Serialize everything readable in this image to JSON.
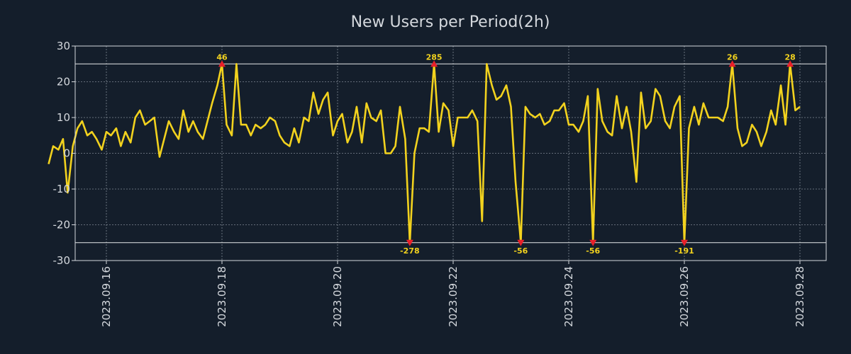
{
  "chart_data": {
    "type": "line",
    "title": "New Users per Period(2h)",
    "xlabel": "",
    "ylabel": "",
    "ylim": [
      -30,
      30
    ],
    "yticks": [
      30,
      20,
      10,
      0,
      -10,
      -20,
      -30
    ],
    "ytick_labels": [
      "30",
      "20",
      "10",
      "0",
      "-10",
      "-20",
      "-30"
    ],
    "x_start": "2023.09.15",
    "x_end": "2023.09.28",
    "x_ticks": [
      "2023.09.16",
      "2023.09.18",
      "2023.09.20",
      "2023.09.22",
      "2023.09.24",
      "2023.09.26",
      "2023.09.28"
    ],
    "clip_limits": [
      25,
      -25
    ],
    "series": [
      {
        "name": "New Users",
        "color": "#f2d21e",
        "values": [
          {
            "t": 0.0,
            "v": -3
          },
          {
            "t": 0.08,
            "v": 2
          },
          {
            "t": 0.17,
            "v": 1
          },
          {
            "t": 0.25,
            "v": 4
          },
          {
            "t": 0.33,
            "v": -11
          },
          {
            "t": 0.42,
            "v": 2
          },
          {
            "t": 0.5,
            "v": 7
          },
          {
            "t": 0.58,
            "v": 9
          },
          {
            "t": 0.67,
            "v": 5
          },
          {
            "t": 0.75,
            "v": 6
          },
          {
            "t": 0.83,
            "v": 4
          },
          {
            "t": 0.92,
            "v": 1
          },
          {
            "t": 1.0,
            "v": 6
          },
          {
            "t": 1.08,
            "v": 5
          },
          {
            "t": 1.17,
            "v": 7
          },
          {
            "t": 1.25,
            "v": 2
          },
          {
            "t": 1.33,
            "v": 6
          },
          {
            "t": 1.42,
            "v": 3
          },
          {
            "t": 1.5,
            "v": 10
          },
          {
            "t": 1.58,
            "v": 12
          },
          {
            "t": 1.67,
            "v": 8
          },
          {
            "t": 1.75,
            "v": 9
          },
          {
            "t": 1.83,
            "v": 10
          },
          {
            "t": 1.92,
            "v": -1
          },
          {
            "t": 2.0,
            "v": 4
          },
          {
            "t": 2.08,
            "v": 9
          },
          {
            "t": 2.17,
            "v": 6
          },
          {
            "t": 2.25,
            "v": 4
          },
          {
            "t": 2.33,
            "v": 12
          },
          {
            "t": 2.42,
            "v": 6
          },
          {
            "t": 2.5,
            "v": 9
          },
          {
            "t": 2.58,
            "v": 6
          },
          {
            "t": 2.67,
            "v": 4
          },
          {
            "t": 2.75,
            "v": 9
          },
          {
            "t": 2.83,
            "v": 14
          },
          {
            "t": 2.92,
            "v": 19
          },
          {
            "t": 3.0,
            "v": 25
          },
          {
            "t": 3.08,
            "v": 8
          },
          {
            "t": 3.17,
            "v": 5
          },
          {
            "t": 3.25,
            "v": 25
          },
          {
            "t": 3.33,
            "v": 8
          },
          {
            "t": 3.42,
            "v": 8
          },
          {
            "t": 3.5,
            "v": 5
          },
          {
            "t": 3.58,
            "v": 8
          },
          {
            "t": 3.67,
            "v": 7
          },
          {
            "t": 3.75,
            "v": 8
          },
          {
            "t": 3.83,
            "v": 10
          },
          {
            "t": 3.92,
            "v": 9
          },
          {
            "t": 4.0,
            "v": 5
          },
          {
            "t": 4.08,
            "v": 3
          },
          {
            "t": 4.17,
            "v": 2
          },
          {
            "t": 4.25,
            "v": 7
          },
          {
            "t": 4.33,
            "v": 3
          },
          {
            "t": 4.42,
            "v": 10
          },
          {
            "t": 4.5,
            "v": 9
          },
          {
            "t": 4.58,
            "v": 17
          },
          {
            "t": 4.67,
            "v": 11
          },
          {
            "t": 4.75,
            "v": 15
          },
          {
            "t": 4.83,
            "v": 17
          },
          {
            "t": 4.92,
            "v": 5
          },
          {
            "t": 5.0,
            "v": 9
          },
          {
            "t": 5.08,
            "v": 11
          },
          {
            "t": 5.17,
            "v": 3
          },
          {
            "t": 5.25,
            "v": 6
          },
          {
            "t": 5.33,
            "v": 13
          },
          {
            "t": 5.42,
            "v": 3
          },
          {
            "t": 5.5,
            "v": 14
          },
          {
            "t": 5.58,
            "v": 10
          },
          {
            "t": 5.67,
            "v": 9
          },
          {
            "t": 5.75,
            "v": 12
          },
          {
            "t": 5.83,
            "v": 0
          },
          {
            "t": 5.92,
            "v": 0
          },
          {
            "t": 6.0,
            "v": 2
          },
          {
            "t": 6.08,
            "v": 13
          },
          {
            "t": 6.17,
            "v": 4
          },
          {
            "t": 6.25,
            "v": -25
          },
          {
            "t": 6.33,
            "v": 0
          },
          {
            "t": 6.42,
            "v": 7
          },
          {
            "t": 6.5,
            "v": 7
          },
          {
            "t": 6.58,
            "v": 6
          },
          {
            "t": 6.67,
            "v": 25
          },
          {
            "t": 6.75,
            "v": 6
          },
          {
            "t": 6.83,
            "v": 14
          },
          {
            "t": 6.92,
            "v": 12
          },
          {
            "t": 7.0,
            "v": 2
          },
          {
            "t": 7.08,
            "v": 10
          },
          {
            "t": 7.17,
            "v": 10
          },
          {
            "t": 7.25,
            "v": 10
          },
          {
            "t": 7.33,
            "v": 12
          },
          {
            "t": 7.42,
            "v": 9
          },
          {
            "t": 7.5,
            "v": -19
          },
          {
            "t": 7.58,
            "v": 25
          },
          {
            "t": 7.67,
            "v": 19
          },
          {
            "t": 7.75,
            "v": 15
          },
          {
            "t": 7.83,
            "v": 16
          },
          {
            "t": 7.92,
            "v": 19
          },
          {
            "t": 8.0,
            "v": 13
          },
          {
            "t": 8.08,
            "v": -8
          },
          {
            "t": 8.17,
            "v": -25
          },
          {
            "t": 8.25,
            "v": 13
          },
          {
            "t": 8.33,
            "v": 11
          },
          {
            "t": 8.42,
            "v": 10
          },
          {
            "t": 8.5,
            "v": 11
          },
          {
            "t": 8.58,
            "v": 8
          },
          {
            "t": 8.67,
            "v": 9
          },
          {
            "t": 8.75,
            "v": 12
          },
          {
            "t": 8.83,
            "v": 12
          },
          {
            "t": 8.92,
            "v": 14
          },
          {
            "t": 9.0,
            "v": 8
          },
          {
            "t": 9.08,
            "v": 8
          },
          {
            "t": 9.17,
            "v": 6
          },
          {
            "t": 9.25,
            "v": 9
          },
          {
            "t": 9.33,
            "v": 16
          },
          {
            "t": 9.42,
            "v": -25
          },
          {
            "t": 9.5,
            "v": 18
          },
          {
            "t": 9.58,
            "v": 9
          },
          {
            "t": 9.67,
            "v": 6
          },
          {
            "t": 9.75,
            "v": 5
          },
          {
            "t": 9.83,
            "v": 16
          },
          {
            "t": 9.92,
            "v": 7
          },
          {
            "t": 10.0,
            "v": 13
          },
          {
            "t": 10.08,
            "v": 6
          },
          {
            "t": 10.17,
            "v": -8
          },
          {
            "t": 10.25,
            "v": 17
          },
          {
            "t": 10.33,
            "v": 7
          },
          {
            "t": 10.42,
            "v": 9
          },
          {
            "t": 10.5,
            "v": 18
          },
          {
            "t": 10.58,
            "v": 16
          },
          {
            "t": 10.67,
            "v": 9
          },
          {
            "t": 10.75,
            "v": 7
          },
          {
            "t": 10.83,
            "v": 13
          },
          {
            "t": 10.92,
            "v": 16
          },
          {
            "t": 11.0,
            "v": -25
          },
          {
            "t": 11.08,
            "v": 7
          },
          {
            "t": 11.17,
            "v": 13
          },
          {
            "t": 11.25,
            "v": 8
          },
          {
            "t": 11.33,
            "v": 14
          },
          {
            "t": 11.42,
            "v": 10
          },
          {
            "t": 11.5,
            "v": 10
          },
          {
            "t": 11.58,
            "v": 10
          },
          {
            "t": 11.67,
            "v": 9
          },
          {
            "t": 11.75,
            "v": 13
          },
          {
            "t": 11.83,
            "v": 25
          },
          {
            "t": 11.92,
            "v": 7
          },
          {
            "t": 12.0,
            "v": 2
          },
          {
            "t": 12.08,
            "v": 3
          },
          {
            "t": 12.17,
            "v": 8
          },
          {
            "t": 12.25,
            "v": 6
          },
          {
            "t": 12.33,
            "v": 2
          },
          {
            "t": 12.42,
            "v": 6
          },
          {
            "t": 12.5,
            "v": 12
          },
          {
            "t": 12.58,
            "v": 8
          },
          {
            "t": 12.67,
            "v": 19
          },
          {
            "t": 12.75,
            "v": 8
          },
          {
            "t": 12.83,
            "v": 25
          },
          {
            "t": 12.92,
            "v": 12
          },
          {
            "t": 13.0,
            "v": 13
          }
        ]
      }
    ],
    "annotations": [
      {
        "t": 3.0,
        "v": 25,
        "label": "46",
        "dir": "up"
      },
      {
        "t": 6.67,
        "v": 25,
        "label": "285",
        "dir": "up"
      },
      {
        "t": 11.83,
        "v": 25,
        "label": "26",
        "dir": "up"
      },
      {
        "t": 12.83,
        "v": 25,
        "label": "28",
        "dir": "up"
      },
      {
        "t": 6.25,
        "v": -25,
        "label": "-278",
        "dir": "down"
      },
      {
        "t": 8.17,
        "v": -25,
        "label": "-56",
        "dir": "down"
      },
      {
        "t": 9.42,
        "v": -25,
        "label": "-56",
        "dir": "down"
      },
      {
        "t": 11.0,
        "v": -25,
        "label": "-191",
        "dir": "down"
      }
    ],
    "grid": true,
    "style": {
      "background": "#141e2b",
      "line_color": "#f2d21e",
      "marker_color": "#e8202a",
      "text_color": "#d4d8dd"
    }
  }
}
